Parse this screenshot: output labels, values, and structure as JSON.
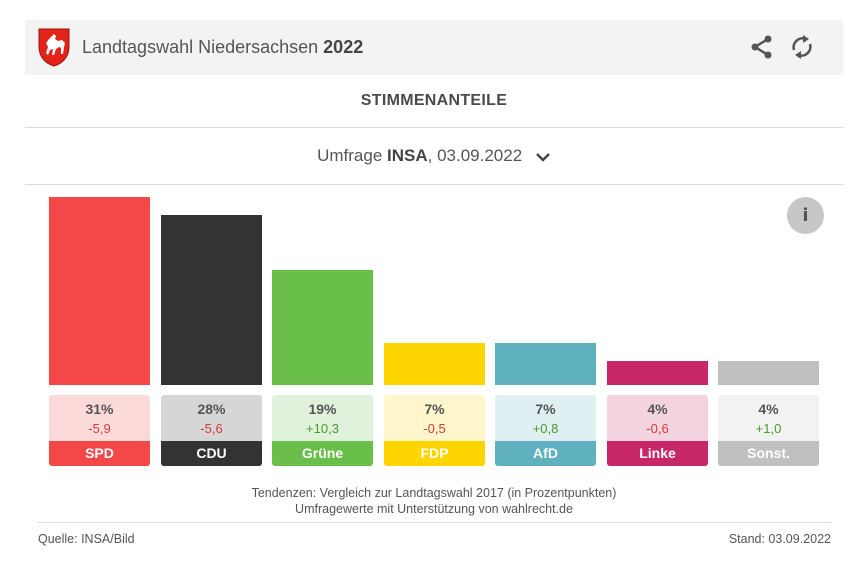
{
  "header": {
    "crest_icon": "lower-saxony-horse-crest",
    "title_prefix": "Landtagswahl Niedersachsen",
    "title_year": "2022",
    "share_icon": "share-icon",
    "refresh_icon": "refresh-icon"
  },
  "section_title": "STIMMENANTEILE",
  "poll_selector": {
    "prefix": "Umfrage",
    "institute": "INSA",
    "date": ", 03.09.2022"
  },
  "info_label": "i",
  "colors": {
    "positive": "#4a9a2a",
    "negative": "#d63a3a"
  },
  "chart_data": {
    "type": "bar",
    "title": "STIMMENANTEILE",
    "categories": [
      "SPD",
      "CDU",
      "Grüne",
      "FDP",
      "AfD",
      "Linke",
      "Sonst."
    ],
    "values": [
      31,
      28,
      19,
      7,
      7,
      4,
      4
    ],
    "value_labels": [
      "31%",
      "28%",
      "19%",
      "7%",
      "7%",
      "4%",
      "4%"
    ],
    "changes": [
      -5.9,
      -5.6,
      10.3,
      -0.5,
      0.8,
      -0.6,
      1.0
    ],
    "change_labels": [
      "-5,9",
      "-5,6",
      "+10,3",
      "-0,5",
      "+0,8",
      "-0,6",
      "+1,0"
    ],
    "colors": [
      "#f44848",
      "#333333",
      "#6abf4b",
      "#ffd500",
      "#5fb1bf",
      "#c72767",
      "#c0c0c0"
    ],
    "light_colors": [
      "#fddada",
      "#d6d6d6",
      "#e1f2dc",
      "#fff6cc",
      "#dfeff2",
      "#f4d3e0",
      "#f2f2f2"
    ],
    "xlabel": "",
    "ylabel": "",
    "ylim": [
      0,
      31
    ],
    "grid": false,
    "legend": "none"
  },
  "footer": {
    "note1": "Tendenzen: Vergleich zur Landtagswahl 2017 (in Prozentpunkten)",
    "note2": "Umfragewerte mit Unterstützung von wahlrecht.de",
    "source": "Quelle: INSA/Bild",
    "stand": "Stand: 03.09.2022"
  }
}
